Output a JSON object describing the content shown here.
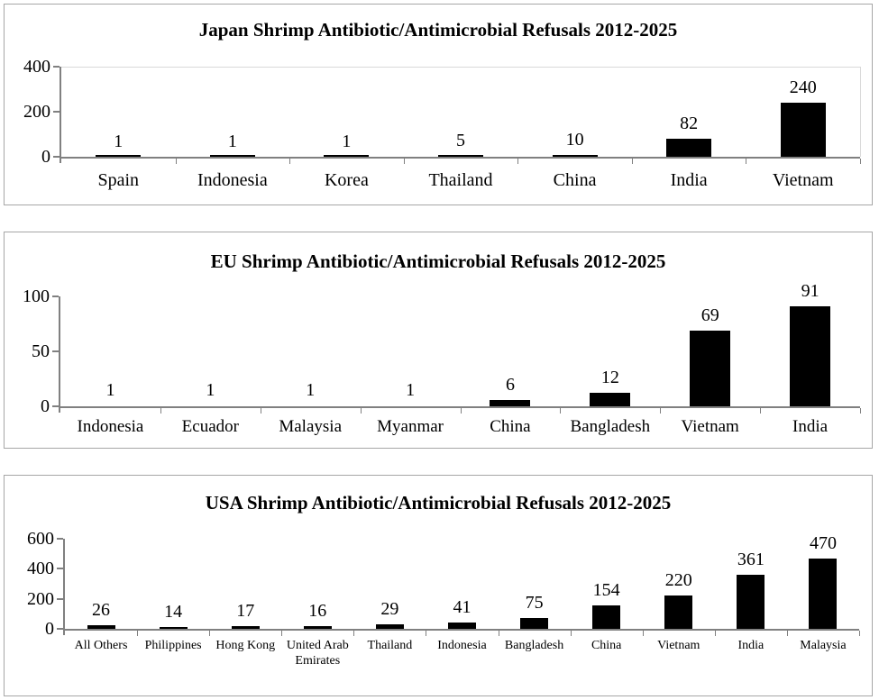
{
  "page": {
    "background": "#ffffff"
  },
  "colors": {
    "bar_fill": "#000000",
    "axis_line": "#808080",
    "panel_border": "#a6a6a6",
    "top_gridline": "#d9d9d9",
    "text": "#000000"
  },
  "chart_data": [
    {
      "type": "bar",
      "title": "Japan Shrimp Antibiotic/Antimicrobial Refusals 2012-2025",
      "categories": [
        "Spain",
        "Indonesia",
        "Korea",
        "Thailand",
        "China",
        "India",
        "Vietnam"
      ],
      "values": [
        1,
        1,
        1,
        5,
        10,
        82,
        240
      ],
      "data_labels": [
        "1",
        "1",
        "1",
        "5",
        "10",
        "82",
        "240"
      ],
      "xlabel": "",
      "ylabel": "",
      "ylim": [
        0,
        400
      ],
      "y_ticks": [
        0,
        200,
        400
      ],
      "grid": "top line only",
      "legend": "none",
      "bar_color": "#000000"
    },
    {
      "type": "bar",
      "title": "EU Shrimp Antibiotic/Antimicrobial Refusals 2012-2025",
      "categories": [
        "Indonesia",
        "Ecuador",
        "Malaysia",
        "Myanmar",
        "China",
        "Bangladesh",
        "Vietnam",
        "India"
      ],
      "values": [
        1,
        1,
        1,
        1,
        6,
        12,
        69,
        91
      ],
      "data_labels": [
        "1",
        "1",
        "1",
        "1",
        "6",
        "12",
        "69",
        "91"
      ],
      "xlabel": "",
      "ylabel": "",
      "ylim": [
        0,
        100
      ],
      "y_ticks": [
        0,
        50,
        100
      ],
      "grid": "off",
      "legend": "none",
      "bar_color": "#000000"
    },
    {
      "type": "bar",
      "title": "USA Shrimp Antibiotic/Antimicrobial Refusals 2012-2025",
      "categories": [
        "All Others",
        "Philippines",
        "Hong Kong",
        "United Arab Emirates",
        "Thailand",
        "Indonesia",
        "Bangladesh",
        "China",
        "Vietnam",
        "India",
        "Malaysia"
      ],
      "values": [
        26,
        14,
        17,
        16,
        29,
        41,
        75,
        154,
        220,
        361,
        470
      ],
      "data_labels": [
        "26",
        "14",
        "17",
        "16",
        "29",
        "41",
        "75",
        "154",
        "220",
        "361",
        "470"
      ],
      "xlabel": "",
      "ylabel": "",
      "ylim": [
        0,
        600
      ],
      "y_ticks": [
        0,
        200,
        400,
        600
      ],
      "grid": "off",
      "legend": "none",
      "bar_color": "#000000"
    }
  ]
}
